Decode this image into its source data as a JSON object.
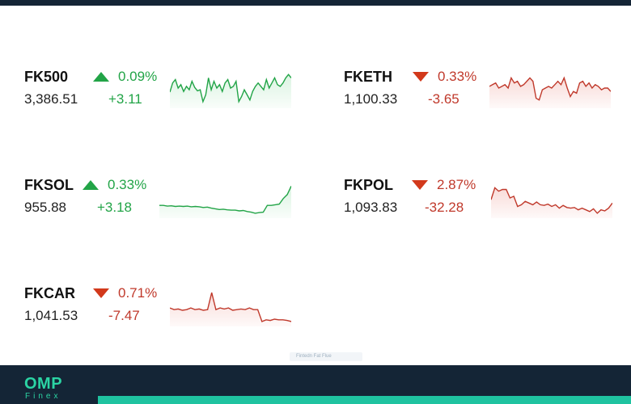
{
  "colors": {
    "up": "#22a447",
    "down": "#c0392b",
    "header": "#142536",
    "brand": "#2bd4a4"
  },
  "tickers": [
    {
      "symbol": "FK500",
      "direction": "up",
      "percent": "0.09%",
      "price": "3,386.51",
      "change": "+3.11",
      "spark": [
        0.62,
        0.35,
        0.25,
        0.5,
        0.4,
        0.6,
        0.45,
        0.55,
        0.3,
        0.48,
        0.58,
        0.55,
        0.9,
        0.7,
        0.2,
        0.55,
        0.3,
        0.5,
        0.4,
        0.6,
        0.35,
        0.25,
        0.5,
        0.45,
        0.3,
        0.9,
        0.75,
        0.55,
        0.7,
        0.85,
        0.6,
        0.45,
        0.35,
        0.45,
        0.55,
        0.25,
        0.5,
        0.35,
        0.2,
        0.4,
        0.45,
        0.35,
        0.2,
        0.1,
        0.2
      ]
    },
    {
      "symbol": "FKETH",
      "direction": "down",
      "percent": "0.33%",
      "price": "1,100.33",
      "change": "-3.65",
      "spark": [
        0.45,
        0.4,
        0.35,
        0.5,
        0.45,
        0.4,
        0.5,
        0.2,
        0.35,
        0.3,
        0.45,
        0.4,
        0.3,
        0.2,
        0.3,
        0.8,
        0.85,
        0.55,
        0.5,
        0.45,
        0.5,
        0.4,
        0.3,
        0.4,
        0.2,
        0.5,
        0.75,
        0.6,
        0.65,
        0.35,
        0.3,
        0.45,
        0.35,
        0.5,
        0.4,
        0.45,
        0.55,
        0.5,
        0.5,
        0.6
      ]
    },
    {
      "symbol": "FKSOL",
      "direction": "up",
      "percent": "0.33%",
      "price": "955.88",
      "change": "+3.18",
      "spark": [
        0.72,
        0.72,
        0.74,
        0.73,
        0.75,
        0.74,
        0.75,
        0.74,
        0.76,
        0.75,
        0.76,
        0.78,
        0.77,
        0.8,
        0.82,
        0.84,
        0.83,
        0.85,
        0.86,
        0.86,
        0.88,
        0.87,
        0.9,
        0.92,
        0.95,
        0.93,
        0.92,
        0.72,
        0.72,
        0.7,
        0.68,
        0.52,
        0.4,
        0.15
      ]
    },
    {
      "symbol": "FKPOL",
      "direction": "down",
      "percent": "2.87%",
      "price": "1,093.83",
      "change": "-32.28",
      "spark": [
        0.55,
        0.2,
        0.3,
        0.25,
        0.25,
        0.5,
        0.45,
        0.75,
        0.7,
        0.6,
        0.65,
        0.7,
        0.62,
        0.7,
        0.72,
        0.68,
        0.75,
        0.7,
        0.8,
        0.72,
        0.78,
        0.8,
        0.78,
        0.85,
        0.8,
        0.85,
        0.9,
        0.82,
        0.95,
        0.85,
        0.88,
        0.8,
        0.65
      ]
    },
    {
      "symbol": "FKCAR",
      "direction": "down",
      "percent": "0.71%",
      "price": "1,041.53",
      "change": "-7.47",
      "spark": [
        0.55,
        0.6,
        0.58,
        0.62,
        0.6,
        0.55,
        0.6,
        0.58,
        0.62,
        0.6,
        0.1,
        0.6,
        0.55,
        0.58,
        0.55,
        0.62,
        0.6,
        0.58,
        0.6,
        0.55,
        0.6,
        0.6,
        0.95,
        0.9,
        0.92,
        0.88,
        0.9,
        0.9,
        0.92,
        0.95
      ]
    }
  ],
  "attribution": "Fintedn Fat Flue",
  "brand": {
    "name": "OMP",
    "sub": "Finex"
  }
}
